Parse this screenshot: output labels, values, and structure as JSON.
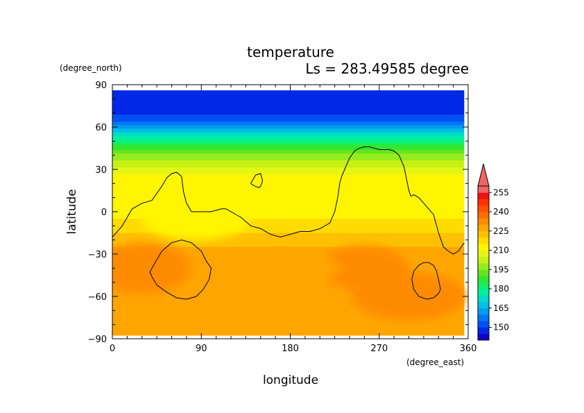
{
  "chart_data": {
    "type": "heatmap",
    "title": "temperature",
    "subtitle": "Ls = 283.49585 degree",
    "xlabel": "longitude",
    "ylabel": "latitude",
    "x_units": "(degree_east)",
    "y_units": "(degree_north)",
    "xlim": [
      0,
      360
    ],
    "ylim": [
      -90,
      90
    ],
    "x_ticks": [
      "0",
      "90",
      "180",
      "270",
      "360"
    ],
    "y_ticks": [
      "90",
      "60",
      "30",
      "0",
      "−30",
      "−60",
      "−90"
    ],
    "x_tick_values": [
      0,
      90,
      180,
      270,
      360
    ],
    "y_tick_values": [
      90,
      60,
      30,
      0,
      -30,
      -60,
      -90
    ],
    "data_extent_lat": [
      -87.5,
      86
    ],
    "data_extent_lon": [
      0,
      356
    ],
    "colorbar": {
      "levels": [
        140,
        145,
        150,
        155,
        160,
        165,
        170,
        175,
        180,
        185,
        190,
        195,
        200,
        205,
        210,
        215,
        220,
        225,
        230,
        235,
        240,
        245,
        250,
        255,
        260
      ],
      "colors": [
        "#1400c8",
        "#0028e6",
        "#0050f5",
        "#0078f5",
        "#009cf0",
        "#00c0e6",
        "#00dcc8",
        "#00f0a0",
        "#14f064",
        "#32e632",
        "#64e61e",
        "#96eb1e",
        "#c8f014",
        "#e6f514",
        "#fff500",
        "#ffdc00",
        "#ffc000",
        "#ffa500",
        "#ff8c00",
        "#ff6e00",
        "#ff5000",
        "#ff3200",
        "#f01414",
        "#f06464"
      ],
      "labels": [
        "150",
        "165",
        "180",
        "195",
        "210",
        "225",
        "240",
        "255"
      ],
      "label_values": [
        150,
        165,
        180,
        195,
        210,
        225,
        240,
        255
      ],
      "extend": "max"
    },
    "profile_lat": [
      86,
      80,
      75,
      70,
      65,
      60,
      55,
      50,
      45,
      40,
      35,
      30,
      25,
      20,
      15,
      10,
      5,
      0,
      -5,
      -10,
      -15,
      -20,
      -25,
      -30,
      -35,
      -40,
      -45,
      -50,
      -55,
      -60,
      -65,
      -70,
      -75,
      -80,
      -87.5
    ],
    "profile_temp": [
      148,
      148,
      148,
      149,
      153,
      162,
      172,
      181,
      189,
      196,
      201,
      206,
      211,
      213,
      214,
      214,
      214,
      214,
      215,
      217,
      220,
      223,
      225,
      227,
      228,
      228,
      228,
      228,
      228,
      228,
      227,
      227,
      226,
      226,
      226
    ],
    "anomalies": [
      {
        "lon": 300,
        "lat": -60,
        "rx": 58,
        "ry": 17,
        "temp": 234
      },
      {
        "lon": 255,
        "lat": -40,
        "rx": 45,
        "ry": 16,
        "temp": 232
      },
      {
        "lon": 30,
        "lat": -40,
        "rx": 50,
        "ry": 18,
        "temp": 231
      },
      {
        "lon": 170,
        "lat": -40,
        "rx": 60,
        "ry": 12,
        "temp": 225
      },
      {
        "lon": 85,
        "lat": -5,
        "rx": 55,
        "ry": 15,
        "temp": 211
      },
      {
        "lon": 200,
        "lat": 8,
        "rx": 35,
        "ry": 10,
        "temp": 214
      },
      {
        "lon": 300,
        "lat": 12,
        "rx": 45,
        "ry": 12,
        "temp": 212
      }
    ],
    "contours": [
      {
        "lon": [
          0,
          10,
          20,
          30,
          40,
          50,
          55,
          60,
          65,
          70,
          72,
          75,
          80,
          90,
          100,
          110,
          115,
          120,
          130,
          140,
          150,
          160,
          170,
          180,
          190,
          200,
          210,
          220,
          225,
          228,
          230,
          232,
          235,
          240,
          245,
          250,
          255,
          260,
          265,
          270,
          275,
          280,
          285,
          290,
          295,
          300,
          302,
          305,
          310,
          315,
          320,
          325,
          330,
          335,
          340,
          345,
          350,
          356
        ],
        "lat": [
          -18,
          -10,
          2,
          6,
          8,
          18,
          24,
          27,
          28,
          25,
          14,
          6,
          0,
          0,
          0,
          2,
          2,
          0,
          -4,
          -10,
          -12,
          -16,
          -18,
          -16,
          -14,
          -14,
          -12,
          -8,
          0,
          10,
          20,
          25,
          30,
          38,
          43,
          45,
          46,
          46,
          45,
          44,
          44,
          44,
          43,
          40,
          32,
          15,
          11,
          12,
          10,
          6,
          2,
          -2,
          -15,
          -25,
          -28,
          -30,
          -28,
          -22
        ]
      },
      {
        "lon": [
          140,
          145,
          150,
          152,
          150,
          148,
          145,
          142,
          140
        ],
        "lat": [
          20,
          26,
          27,
          22,
          18,
          17,
          18,
          19,
          20
        ]
      },
      {
        "lon": [
          40,
          50,
          60,
          70,
          80,
          90,
          95,
          100,
          98,
          92,
          85,
          75,
          65,
          55,
          45,
          40,
          38,
          40
        ],
        "lat": [
          -40,
          -28,
          -22,
          -20,
          -22,
          -28,
          -35,
          -40,
          -48,
          -55,
          -60,
          -62,
          -61,
          -57,
          -52,
          -46,
          -43,
          -40
        ]
      },
      {
        "lon": [
          305,
          310,
          315,
          320,
          325,
          328,
          330,
          332,
          330,
          325,
          318,
          310,
          305,
          303,
          305
        ],
        "lat": [
          -42,
          -38,
          -36,
          -36,
          -38,
          -42,
          -48,
          -55,
          -58,
          -61,
          -62,
          -60,
          -55,
          -48,
          -42
        ]
      }
    ]
  }
}
